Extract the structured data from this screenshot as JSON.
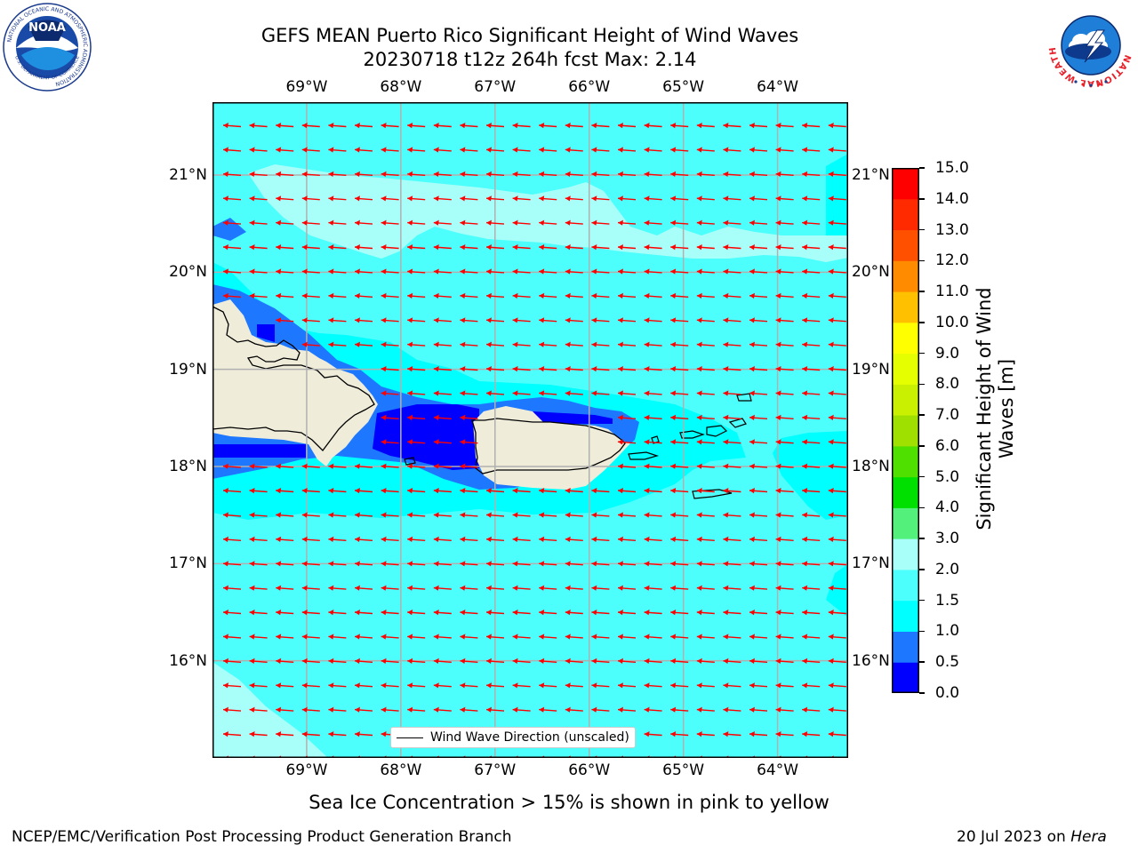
{
  "header": {
    "title_line1": "GEFS MEAN Puerto Rico Significant Height of Wind Waves",
    "title_line2": "20230718 t12z 264h fcst   Max: 2.14"
  },
  "logos": {
    "noara_text": "NOAA",
    "noaa_ring_text": "NATIONAL OCEANIC AND ATMOSPHERIC ADMINISTRATION",
    "noaa_bottom_text": "U.S. DEPARTMENT OF COMMERCE",
    "nws_ring_text": "NATIONAL WEATHER SERVICE"
  },
  "axes": {
    "lon_labels": [
      "69°W",
      "68°W",
      "67°W",
      "66°W",
      "65°W",
      "64°W"
    ],
    "lat_labels": [
      "21°N",
      "20°N",
      "19°N",
      "18°N",
      "17°N",
      "16°N"
    ],
    "lon_values": [
      -69,
      -68,
      -67,
      -66,
      -65,
      -64
    ],
    "lat_values": [
      21,
      20,
      19,
      18,
      17,
      16
    ],
    "lon_range": [
      -70.0,
      -63.25
    ],
    "lat_range": [
      15.0,
      21.75
    ]
  },
  "legend": {
    "label": "Wind Wave Direction (unscaled)",
    "placement": "bottom-center"
  },
  "colorbar": {
    "title": "Significant Height of Wind Waves [m]",
    "title_line1": "Significant Height of Wind",
    "title_line2": "Waves [m]",
    "tick_labels": [
      "0.0",
      "0.5",
      "1.0",
      "1.5",
      "2.0",
      "3.0",
      "4.0",
      "5.0",
      "6.0",
      "7.0",
      "8.0",
      "9.0",
      "10.0",
      "11.0",
      "12.0",
      "13.0",
      "14.0",
      "15.0"
    ],
    "levels": [
      0.0,
      0.5,
      1.0,
      1.5,
      2.0,
      3.0,
      4.0,
      5.0,
      6.0,
      7.0,
      8.0,
      9.0,
      10.0,
      11.0,
      12.0,
      13.0,
      14.0,
      15.0
    ],
    "colors": [
      "#0000ff",
      "#1e78ff",
      "#00ffff",
      "#4dfffc",
      "#a8fffa",
      "#54f07c",
      "#00e000",
      "#4fe000",
      "#a0e000",
      "#c8f000",
      "#e6ff00",
      "#ffff00",
      "#ffc000",
      "#ff8c00",
      "#ff5000",
      "#ff2a00",
      "#ff0000"
    ]
  },
  "map_colors": {
    "land": "#efedda",
    "coast": "#000000",
    "grid": "#b0b0b0",
    "arrow": "#ff0000",
    "field_bg": "#00ffff",
    "field_1_5_2": "#4dfffc",
    "field_2_3": "#a8fffa",
    "field_0_5_1": "#1e78ff",
    "field_0_0_5": "#0000ff"
  },
  "wind_wave_direction": {
    "dominant": "toward west (from east)"
  },
  "notes": {
    "ice": "Sea Ice Concentration > 15% is shown in pink to yellow"
  },
  "footer": {
    "left": "NCEP/EMC/Verification Post Processing Product Generation Branch",
    "date": "20 Jul 2023 on ",
    "machine": "Hera"
  }
}
